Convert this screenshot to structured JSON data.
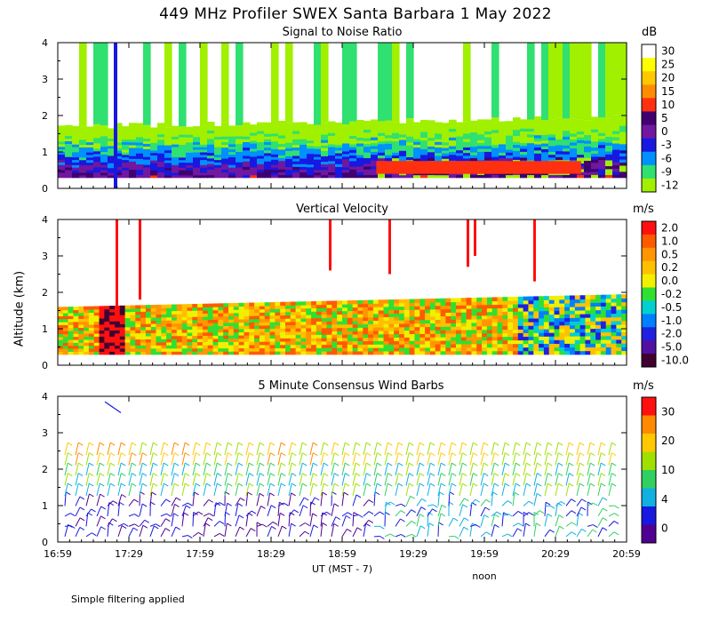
{
  "page_title": "449 MHz Profiler SWEX Santa Barbara  1 May 2022",
  "y_axis_label": "Altitude (km)",
  "x_axis_label": "UT  (MST - 7)",
  "noon_label": "noon",
  "footnote": "Simple filtering applied",
  "chart_data": [
    {
      "type": "heatmap",
      "title": "Signal to Noise Ratio",
      "unit": "dB",
      "x_ticks": [
        "16:59",
        "17:29",
        "17:59",
        "18:29",
        "18:59",
        "19:29",
        "19:59",
        "20:29",
        "20:59"
      ],
      "y_ticks": [
        "0",
        "1",
        "2",
        "3",
        "4"
      ],
      "ylim": [
        0,
        4
      ],
      "colorbar_labels": [
        "30",
        "25",
        "20",
        "15",
        "10",
        "5",
        "0",
        "-3",
        "-6",
        "-9",
        "-12"
      ],
      "colorbar_colors": [
        "#ffffff",
        "#ffff00",
        "#ffc800",
        "#ff8c00",
        "#ff3010",
        "#400070",
        "#7018a0",
        "#1818e0",
        "#0090ff",
        "#30e070",
        "#a0f000"
      ]
    },
    {
      "type": "heatmap",
      "title": "Vertical Velocity",
      "unit": "m/s",
      "x_ticks": [
        "16:59",
        "17:29",
        "17:59",
        "18:29",
        "18:59",
        "19:29",
        "19:59",
        "20:29",
        "20:59"
      ],
      "y_ticks": [
        "0",
        "1",
        "2",
        "3",
        "4"
      ],
      "ylim": [
        0,
        4
      ],
      "colorbar_labels": [
        "2.0",
        "1.0",
        "0.5",
        "0.2",
        "0.0",
        "-0.2",
        "-0.5",
        "-1.0",
        "-2.0",
        "-5.0",
        "-10.0"
      ],
      "colorbar_colors": [
        "#ff1010",
        "#ff5a00",
        "#ff9600",
        "#ffc000",
        "#f0f000",
        "#30e030",
        "#00d0d0",
        "#0080ff",
        "#2020e0",
        "#5010a0",
        "#400030"
      ]
    },
    {
      "type": "scatter",
      "title": "5 Minute Consensus Wind Barbs",
      "unit": "m/s",
      "x_ticks": [
        "16:59",
        "17:29",
        "17:59",
        "18:29",
        "18:59",
        "19:29",
        "19:59",
        "20:29",
        "20:59"
      ],
      "y_ticks": [
        "0",
        "1",
        "2",
        "3",
        "4"
      ],
      "ylim": [
        0,
        4
      ],
      "colorbar_labels": [
        "30",
        "20",
        "10",
        "4",
        "0"
      ],
      "colorbar_colors": [
        "#ff1010",
        "#ff8a00",
        "#ffc800",
        "#a0e000",
        "#30d060",
        "#10b0e0",
        "#1818e0",
        "#500090"
      ]
    }
  ]
}
